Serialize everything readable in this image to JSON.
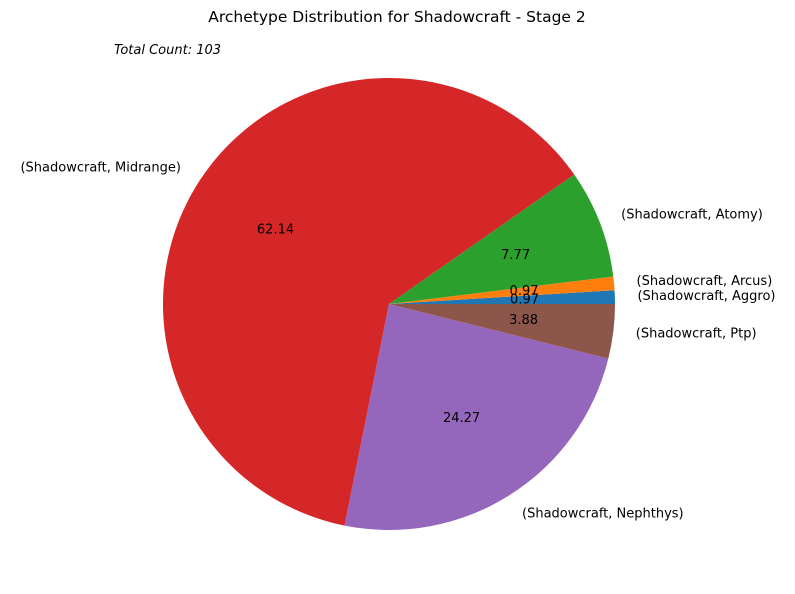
{
  "chart_data": {
    "type": "pie",
    "title": "Archetype Distribution for Shadowcraft - Stage 2",
    "annotation": "Total Count: 103",
    "slices": [
      {
        "label": "(Shadowcraft, Aggro)",
        "value": 0.97,
        "pct_label": "0.97",
        "color": "#1f77b4"
      },
      {
        "label": "(Shadowcraft, Arcus)",
        "value": 0.97,
        "pct_label": "0.97",
        "color": "#ff7f0e"
      },
      {
        "label": "(Shadowcraft, Atomy)",
        "value": 7.77,
        "pct_label": "7.77",
        "color": "#2ca02c"
      },
      {
        "label": "(Shadowcraft, Midrange)",
        "value": 62.14,
        "pct_label": "62.14",
        "color": "#d62728"
      },
      {
        "label": "(Shadowcraft, Nephthys)",
        "value": 24.27,
        "pct_label": "24.27",
        "color": "#9467bd"
      },
      {
        "label": "(Shadowcraft, Ptp)",
        "value": 3.88,
        "pct_label": "3.88",
        "color": "#8c564b"
      }
    ]
  }
}
